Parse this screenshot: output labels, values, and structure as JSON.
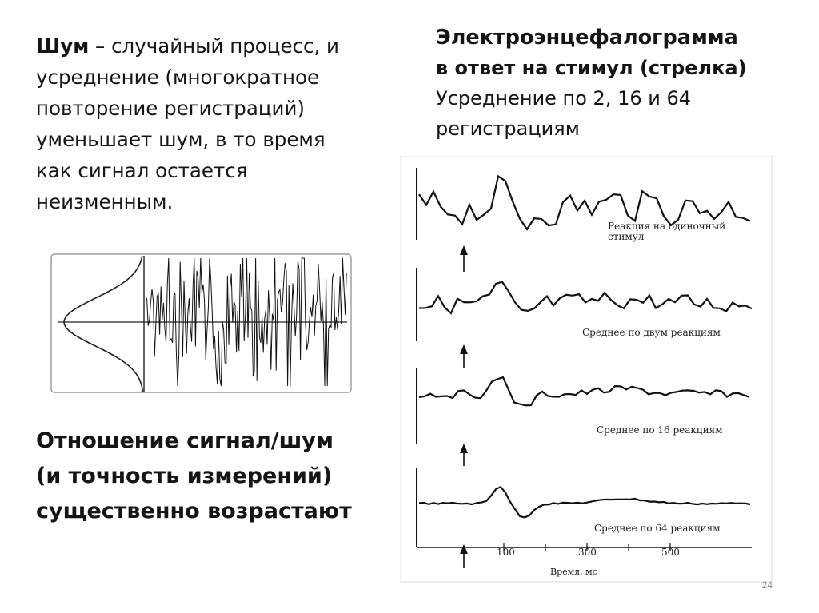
{
  "left": {
    "heading": "Шум",
    "lines": [
      " – случайный процесс, и",
      "усреднение (многократное",
      "повторение регистраций)",
      "уменьшает шум, в то время",
      "как  сигнал остается",
      "неизменным."
    ]
  },
  "conclusion": {
    "lines": [
      "Отношение сигнал/шум",
      "(и точность измерений)",
      "существенно возрастают"
    ]
  },
  "right": {
    "title": "Электроэнцефалограмма",
    "subtitle": "в ответ на стимул (стрелка)",
    "line3": "Усреднение по 2, 16 и 64",
    "line4": "регистрациям"
  },
  "eeg": {
    "panel_labels": [
      [
        "Реакция на одиночный",
        "стимул"
      ],
      [
        "Среднее по двум реакциям"
      ],
      [
        "Среднее по 16 реакциям"
      ],
      [
        "Среднее по 64 реакциям"
      ]
    ],
    "x_ticks": [
      "100",
      "300",
      "500"
    ],
    "x_axis_label": "Время, мс"
  },
  "slide_number": "24"
}
